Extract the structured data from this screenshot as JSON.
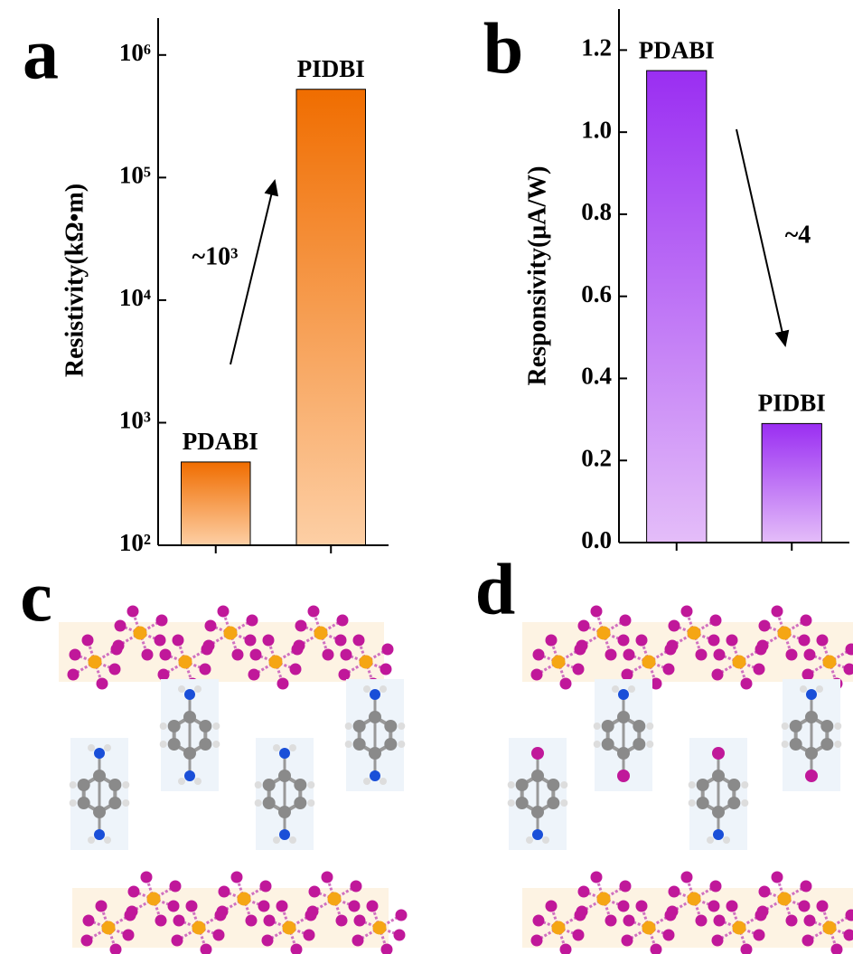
{
  "panel_labels": [
    "a",
    "b",
    "c",
    "d"
  ],
  "chart_data": [
    {
      "type": "bar",
      "y_label": "Resistivity(kΩ•m)",
      "log_y": true,
      "categories": [
        "PDABI",
        "PIDBI"
      ],
      "values": [
        478,
        525000
      ],
      "colors": [
        "#f06d00",
        "#fdcfa5"
      ],
      "ylim": [
        100,
        2000000
      ],
      "yticks": [
        {
          "value": 100,
          "label": "10²"
        },
        {
          "value": 1000,
          "label": "10³"
        },
        {
          "value": 10000,
          "label": "10⁴"
        },
        {
          "value": 100000,
          "label": "10⁵"
        },
        {
          "value": 1000000,
          "label": "10⁶"
        }
      ],
      "annotation": "~10³"
    },
    {
      "type": "bar",
      "y_label": "Responsivity(μA/W)",
      "log_y": false,
      "categories": [
        "PDABI",
        "PIDBI"
      ],
      "values": [
        1.15,
        0.29
      ],
      "colors": [
        "#9a2ef2",
        "#e4bdf9"
      ],
      "ylim": [
        0,
        1.3
      ],
      "yticks": [
        {
          "value": 0,
          "label": "0.0"
        },
        0.2,
        0.4,
        0.6,
        0.8,
        {
          "value": 1,
          "label": "1.0"
        },
        1.2
      ],
      "annotation": "~4"
    }
  ]
}
